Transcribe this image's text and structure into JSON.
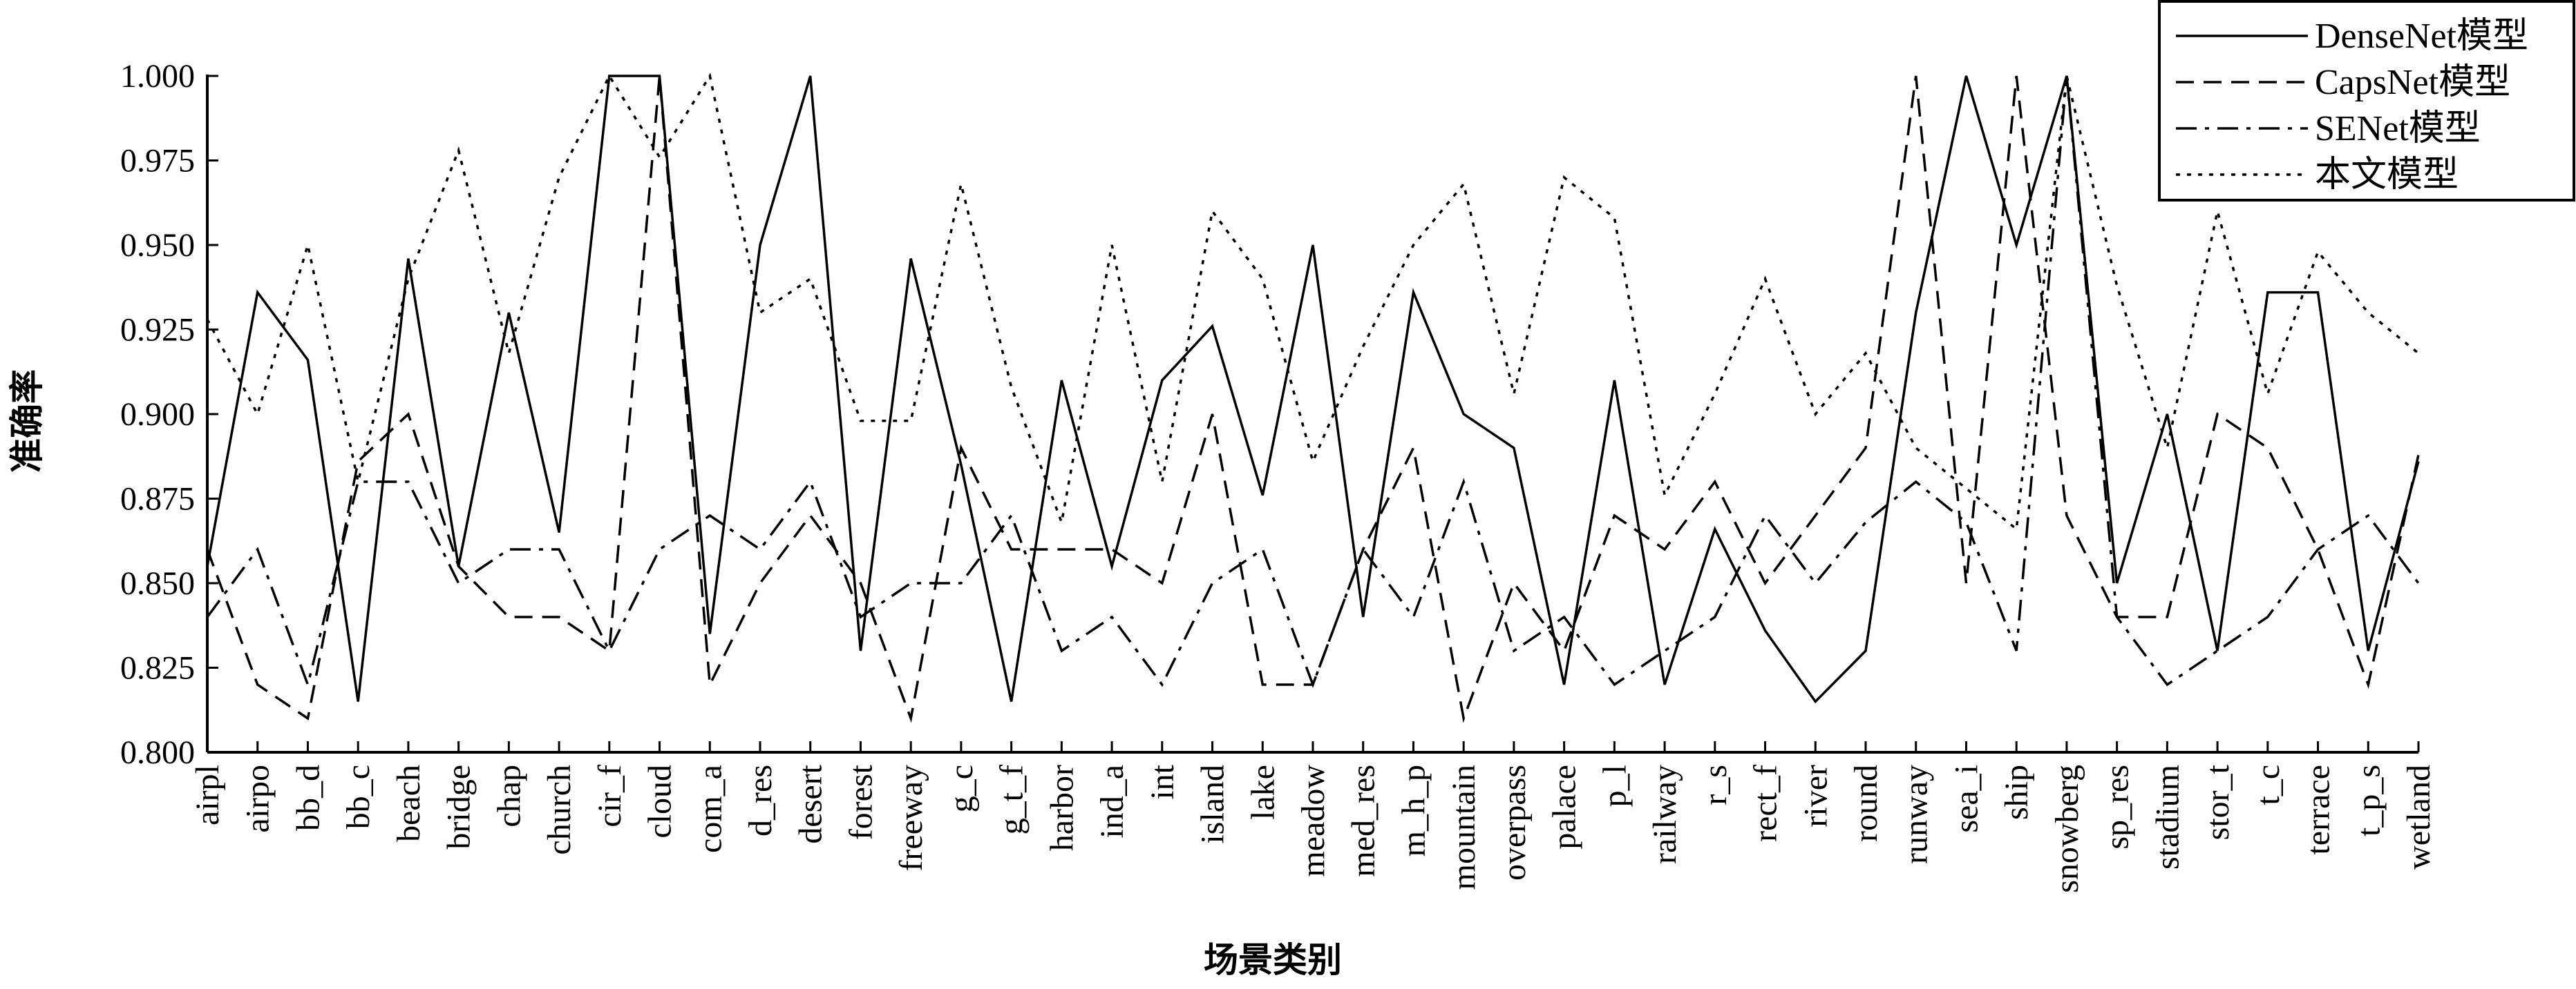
{
  "chart_data": {
    "type": "line",
    "title": "",
    "xlabel": "场景类别",
    "ylabel": "准确率",
    "ylim": [
      0.8,
      1.0
    ],
    "yticks": [
      "0.800",
      "0.825",
      "0.850",
      "0.875",
      "0.900",
      "0.925",
      "0.950",
      "0.975",
      "1.000"
    ],
    "legend_position": "top-right",
    "grid": false,
    "categories": [
      "airpl",
      "airpo",
      "bb_d",
      "bb_c",
      "beach",
      "bridge",
      "chap",
      "church",
      "cir_f",
      "cloud",
      "com_a",
      "d_res",
      "desert",
      "forest",
      "freeway",
      "g_c",
      "g_t_f",
      "harbor",
      "ind_a",
      "int",
      "island",
      "lake",
      "meadow",
      "med_res",
      "m_h_p",
      "mountain",
      "overpass",
      "palace",
      "p_l",
      "railway",
      "r_s",
      "rect_f",
      "river",
      "round",
      "runway",
      "sea_i",
      "ship",
      "snowberg",
      "sp_res",
      "stadium",
      "stor_t",
      "t_c",
      "terrace",
      "t_p_s",
      "wetland"
    ],
    "series": [
      {
        "name": "DenseNet模型",
        "style": "solid",
        "values": [
          0.855,
          0.936,
          0.916,
          0.815,
          0.946,
          0.855,
          0.93,
          0.865,
          1.0,
          1.0,
          0.835,
          0.95,
          1.0,
          0.83,
          0.946,
          0.885,
          0.815,
          0.91,
          0.855,
          0.91,
          0.926,
          0.876,
          0.95,
          0.84,
          0.936,
          0.9,
          0.89,
          0.82,
          0.91,
          0.82,
          0.866,
          0.836,
          0.815,
          0.83,
          0.93,
          1.0,
          0.95,
          1.0,
          0.85,
          0.9,
          0.83,
          0.936,
          0.936,
          0.83,
          0.886
        ]
      },
      {
        "name": "CapsNet模型",
        "style": "dashed",
        "values": [
          0.86,
          0.82,
          0.81,
          0.886,
          0.9,
          0.855,
          0.84,
          0.84,
          0.83,
          1.0,
          0.82,
          0.85,
          0.87,
          0.85,
          0.81,
          0.89,
          0.86,
          0.86,
          0.86,
          0.85,
          0.9,
          0.82,
          0.82,
          0.86,
          0.89,
          0.81,
          0.85,
          0.83,
          0.87,
          0.86,
          0.88,
          0.85,
          0.87,
          0.89,
          1.0,
          0.85,
          1.0,
          0.87,
          0.84,
          0.84,
          0.9,
          0.89,
          0.86,
          0.82,
          0.888
        ]
      },
      {
        "name": "SENet模型",
        "style": "dashdot",
        "values": [
          0.84,
          0.86,
          0.82,
          0.88,
          0.88,
          0.85,
          0.86,
          0.86,
          0.83,
          0.86,
          0.87,
          0.86,
          0.88,
          0.84,
          0.85,
          0.85,
          0.87,
          0.83,
          0.84,
          0.82,
          0.85,
          0.86,
          0.82,
          0.86,
          0.84,
          0.88,
          0.83,
          0.84,
          0.82,
          0.83,
          0.84,
          0.87,
          0.85,
          0.868,
          0.88,
          0.868,
          0.83,
          1.0,
          0.84,
          0.82,
          0.83,
          0.84,
          0.86,
          0.87,
          0.85
        ]
      },
      {
        "name": "本文模型",
        "style": "dotted",
        "values": [
          0.928,
          0.9,
          0.95,
          0.88,
          0.94,
          0.978,
          0.918,
          0.97,
          1.0,
          0.976,
          1.0,
          0.93,
          0.94,
          0.898,
          0.898,
          0.968,
          0.908,
          0.868,
          0.95,
          0.88,
          0.96,
          0.94,
          0.886,
          0.92,
          0.95,
          0.968,
          0.906,
          0.97,
          0.958,
          0.876,
          0.906,
          0.94,
          0.9,
          0.918,
          0.89,
          0.878,
          0.866,
          1.0,
          0.938,
          0.89,
          0.96,
          0.906,
          0.948,
          0.93,
          0.918
        ]
      }
    ]
  }
}
